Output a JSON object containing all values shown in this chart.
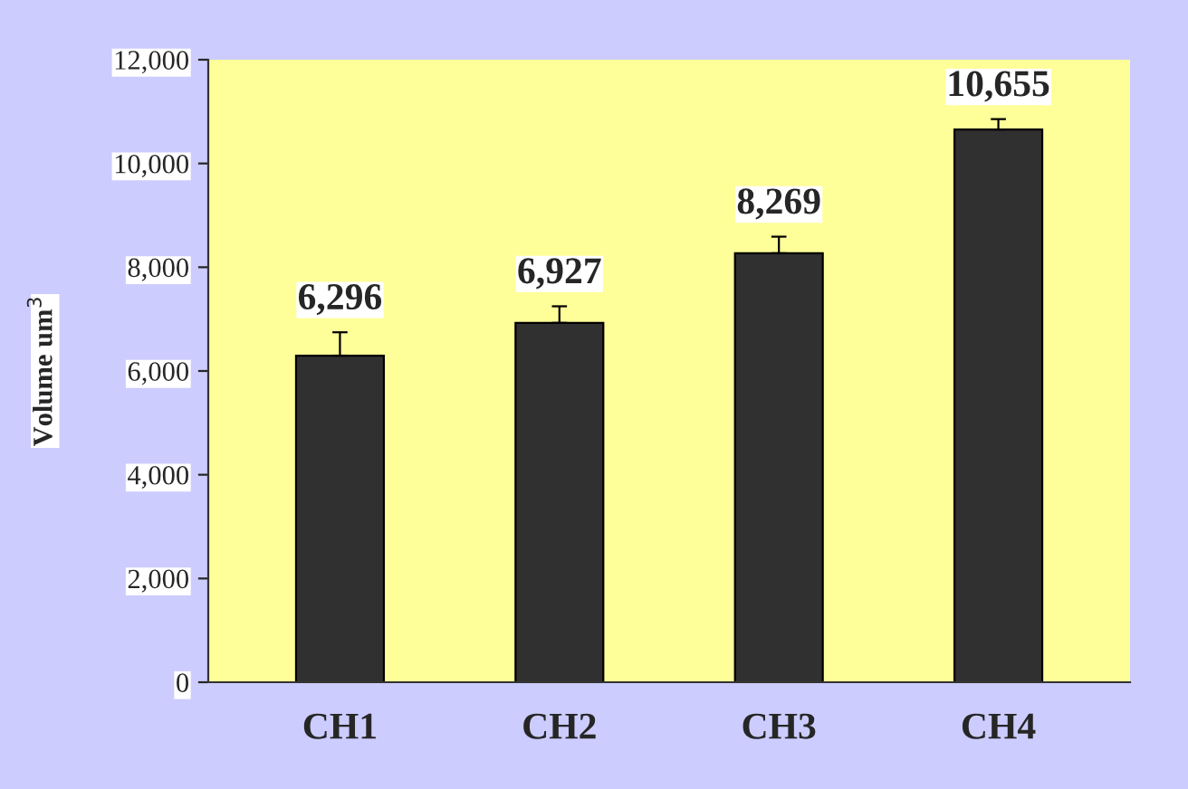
{
  "chart_data": {
    "type": "bar",
    "ylabel": "Volume um$^{3}$",
    "categories": [
      "CH1",
      "CH2",
      "CH3",
      "CH4"
    ],
    "values": [
      6296,
      6927,
      8269,
      10655
    ],
    "errors": [
      450,
      320,
      320,
      200
    ],
    "value_labels": [
      "6,296",
      "6,927",
      "8,269",
      "10,655"
    ],
    "color": "#303030",
    "ylim": [
      0,
      12000
    ],
    "yticks": [
      {
        "value": 0,
        "label": "0"
      },
      {
        "value": 2000,
        "label": "2,000"
      },
      {
        "value": 4000,
        "label": "4,000"
      },
      {
        "value": 6000,
        "label": "6,000"
      },
      {
        "value": 8000,
        "label": "8,000"
      },
      {
        "value": 10000,
        "label": "10,000"
      },
      {
        "value": 12000,
        "label": "12,000"
      }
    ],
    "grid": false
  }
}
